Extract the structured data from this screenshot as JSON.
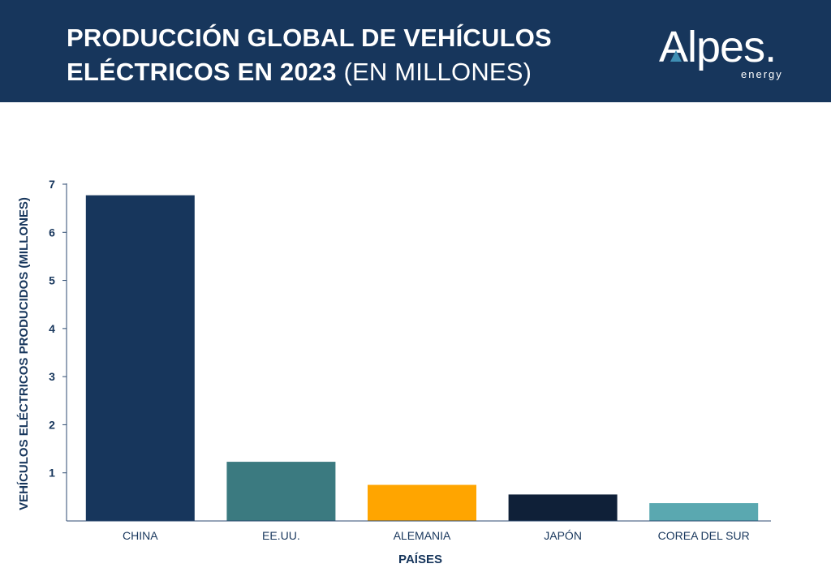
{
  "header": {
    "title_line1": "PRODUCCIÓN GLOBAL DE VEHÍCULOS",
    "title_line2_bold": "ELÉCTRICOS EN 2023",
    "title_line2_light": "(EN MILLONES)",
    "logo_word": "Alpes.",
    "logo_sub": "energy"
  },
  "colors": {
    "header_bg": "#17365c",
    "axis": "#2c4a70"
  },
  "chart_data": {
    "type": "bar",
    "title": "PRODUCCIÓN GLOBAL DE VEHÍCULOS ELÉCTRICOS EN 2023 (EN MILLONES)",
    "xlabel": "PAÍSES",
    "ylabel": "VEHÍCULOS ELÉCTRICOS PRODUCIDOS (MILLONES)",
    "categories": [
      "CHINA",
      "EE.UU.",
      "ALEMANIA",
      "JAPÓN",
      "COREA DEL SUR"
    ],
    "values": [
      6.77,
      1.23,
      0.75,
      0.55,
      0.37
    ],
    "bar_colors": [
      "#17365c",
      "#3b7a80",
      "#ffa500",
      "#0f2038",
      "#5aa8b0"
    ],
    "yticks": [
      "1",
      "2",
      "3",
      "4",
      "5",
      "6",
      "7"
    ],
    "ylim": [
      0,
      7
    ],
    "grid": false,
    "legend": "none"
  }
}
